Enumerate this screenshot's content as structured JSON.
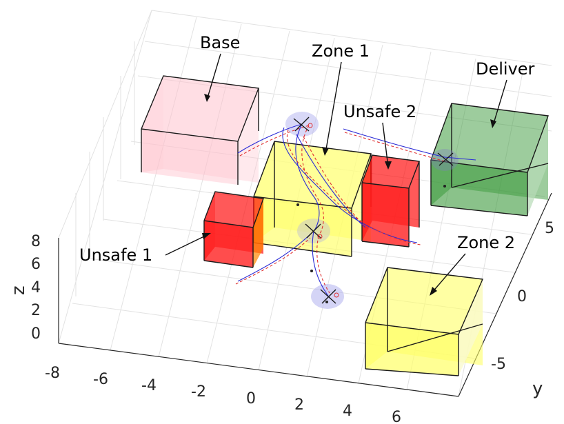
{
  "axes": {
    "xlabel": "",
    "ylabel": "y",
    "zlabel": "z",
    "xticks": [
      "-8",
      "-6",
      "-4",
      "-2",
      "0",
      "2",
      "4",
      "6"
    ],
    "yticks": [
      "5",
      "0",
      "-5"
    ],
    "zticks": [
      "8",
      "6",
      "4",
      "2",
      "0"
    ]
  },
  "regions": [
    {
      "key": "base",
      "label": "Base",
      "color": "#ffc0cb"
    },
    {
      "key": "zone1",
      "label": "Zone 1",
      "color": "#ffff66"
    },
    {
      "key": "deliver",
      "label": "Deliver",
      "color": "#3c9a3c"
    },
    {
      "key": "unsafe2",
      "label": "Unsafe 2",
      "color": "#ff0000"
    },
    {
      "key": "unsafe1",
      "label": "Unsafe 1",
      "color": "#ff0000"
    },
    {
      "key": "zone2",
      "label": "Zone 2",
      "color": "#ffff66"
    }
  ],
  "colors": {
    "trajectory_blue": "#2b2bd6",
    "trajectory_red": "#e03030",
    "waypoint_halo": "#b8b8f0"
  }
}
